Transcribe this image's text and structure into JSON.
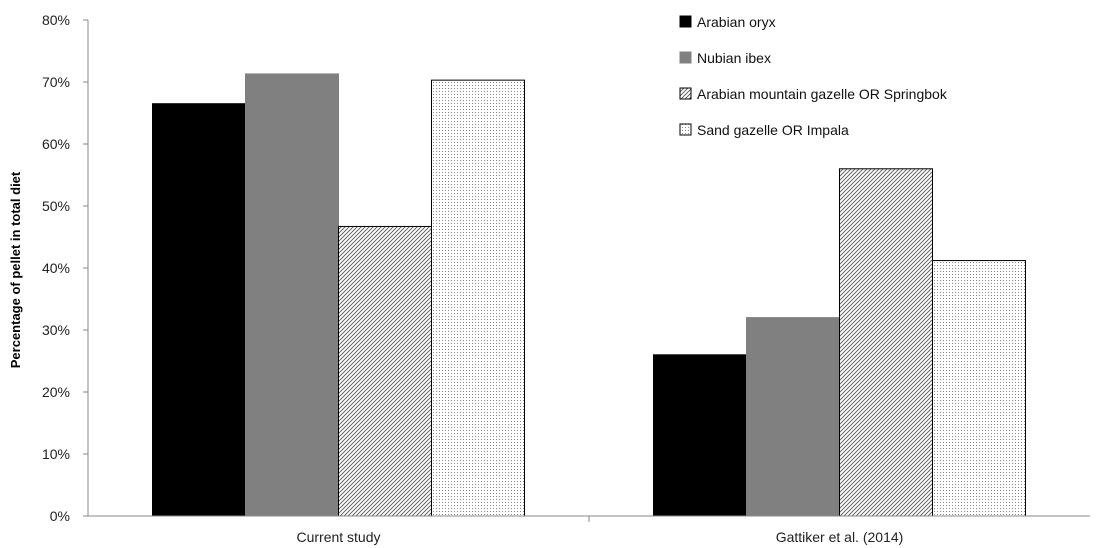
{
  "chart_data": {
    "type": "bar",
    "categories": [
      "Current study",
      "Gattiker et al. (2014)"
    ],
    "series": [
      {
        "name": "Arabian oryx",
        "values": [
          66.5,
          26.0
        ],
        "color": "#000000",
        "pattern": "solid"
      },
      {
        "name": "Nubian ibex",
        "values": [
          71.3,
          32.0
        ],
        "color": "#808080",
        "pattern": "solid"
      },
      {
        "name": "Arabian mountain gazelle OR Springbok",
        "values": [
          46.7,
          56.0
        ],
        "color": "#ffffff",
        "pattern": "diagonal-hatch"
      },
      {
        "name": "Sand gazelle OR Impala",
        "values": [
          70.3,
          41.2
        ],
        "color": "#ffffff",
        "pattern": "dots"
      }
    ],
    "ylabel": "Percentage of pellet in total diet",
    "xlabel": "",
    "ylim": [
      0,
      80
    ],
    "yticks": [
      "0%",
      "10%",
      "20%",
      "30%",
      "40%",
      "50%",
      "60%",
      "70%",
      "80%"
    ],
    "grid": false,
    "legend_position": "top-right"
  }
}
